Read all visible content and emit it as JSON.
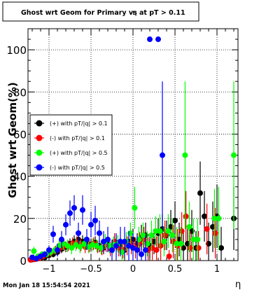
{
  "chart_data": {
    "type": "scatter",
    "title": "Ghost wrt Geom for Primary vs η at pT > 0.11",
    "title_part1": "Ghost wrt Geom for Primary vs",
    "title_eta": "η",
    "title_part2": "at pT > 0.11",
    "xlabel": "η",
    "ylabel": "Ghost wrt Geom(%)",
    "xlim": [
      -1.25,
      1.25
    ],
    "ylim": [
      0,
      110
    ],
    "x_ticks": [
      -1,
      -0.5,
      0,
      0.5,
      1
    ],
    "x_tick_labels": [
      "−1",
      "−0.5",
      "0",
      "0.5",
      "1"
    ],
    "y_ticks": [
      0,
      20,
      40,
      60,
      80,
      100
    ],
    "y_tick_labels": [
      "0",
      "20",
      "40",
      "60",
      "80",
      "100"
    ],
    "grid": true,
    "legend_position": "middle-left",
    "timestamp": "Mon Jan 18 15:54:54 2021",
    "series": [
      {
        "name": "(+) with pT/|q| > 0.1",
        "color": "#000000",
        "points": [
          [
            -1.2,
            0.5,
            0.5
          ],
          [
            -1.15,
            0.8,
            0.8
          ],
          [
            -1.1,
            1.2,
            1.0
          ],
          [
            -1.05,
            1.5,
            1.2
          ],
          [
            -1.0,
            2.5,
            1.5
          ],
          [
            -0.95,
            3.0,
            1.5
          ],
          [
            -0.9,
            4.0,
            2.0
          ],
          [
            -0.85,
            5.5,
            2.0
          ],
          [
            -0.8,
            6.5,
            2.5
          ],
          [
            -0.75,
            8.0,
            2.5
          ],
          [
            -0.7,
            9.0,
            3.0
          ],
          [
            -0.65,
            10.0,
            3.0
          ],
          [
            -0.6,
            9.0,
            3.0
          ],
          [
            -0.55,
            8.0,
            3.0
          ],
          [
            -0.5,
            7.5,
            3.0
          ],
          [
            -0.45,
            8.5,
            3.0
          ],
          [
            -0.4,
            7.0,
            3.0
          ],
          [
            -0.35,
            6.0,
            3.0
          ],
          [
            -0.3,
            8.0,
            3.5
          ],
          [
            -0.25,
            6.0,
            3.5
          ],
          [
            -0.2,
            8.5,
            4.0
          ],
          [
            -0.15,
            7.0,
            4.0
          ],
          [
            -0.1,
            5.0,
            4.0
          ],
          [
            -0.05,
            9.0,
            4.5
          ],
          [
            0.0,
            10.0,
            5.0
          ],
          [
            0.05,
            8.0,
            5.0
          ],
          [
            0.1,
            11.0,
            6.0
          ],
          [
            0.15,
            12.0,
            6.0
          ],
          [
            0.2,
            7.0,
            6.0
          ],
          [
            0.25,
            9.0,
            6.0
          ],
          [
            0.3,
            13.0,
            7.0
          ],
          [
            0.35,
            15.0,
            7.0
          ],
          [
            0.4,
            12.0,
            7.0
          ],
          [
            0.45,
            16.0,
            8.0
          ],
          [
            0.5,
            19.0,
            9.0
          ],
          [
            0.55,
            10.0,
            8.0
          ],
          [
            0.6,
            6.0,
            8.0
          ],
          [
            0.65,
            8.0,
            8.0
          ],
          [
            0.7,
            14.0,
            10.0
          ],
          [
            0.75,
            6.0,
            8.0
          ],
          [
            0.8,
            32.0,
            15.0
          ],
          [
            0.85,
            21.0,
            12.0
          ],
          [
            0.9,
            8.0,
            10.0
          ],
          [
            0.95,
            16.0,
            12.0
          ],
          [
            1.0,
            21.0,
            15.0
          ],
          [
            1.05,
            6.0,
            10.0
          ],
          [
            1.2,
            20.0,
            15.0
          ]
        ]
      },
      {
        "name": "(-) with pT/|q| > 0.1",
        "color": "#ff0000",
        "points": [
          [
            -1.22,
            0.3,
            0.3
          ],
          [
            -1.17,
            0.6,
            0.5
          ],
          [
            -1.12,
            1.0,
            0.8
          ],
          [
            -1.07,
            2.0,
            1.0
          ],
          [
            -1.02,
            3.0,
            1.5
          ],
          [
            -0.97,
            4.0,
            2.0
          ],
          [
            -0.92,
            5.0,
            2.0
          ],
          [
            -0.87,
            6.0,
            2.5
          ],
          [
            -0.82,
            7.0,
            2.5
          ],
          [
            -0.77,
            7.0,
            2.5
          ],
          [
            -0.72,
            8.0,
            3.0
          ],
          [
            -0.67,
            8.5,
            3.0
          ],
          [
            -0.62,
            7.5,
            3.0
          ],
          [
            -0.57,
            6.5,
            3.0
          ],
          [
            -0.52,
            7.0,
            3.0
          ],
          [
            -0.47,
            8.0,
            3.0
          ],
          [
            -0.42,
            6.5,
            3.0
          ],
          [
            -0.37,
            5.5,
            3.0
          ],
          [
            -0.32,
            7.5,
            3.5
          ],
          [
            -0.27,
            5.5,
            3.5
          ],
          [
            -0.22,
            9.0,
            4.0
          ],
          [
            -0.17,
            6.0,
            4.0
          ],
          [
            -0.12,
            5.0,
            4.0
          ],
          [
            -0.07,
            7.0,
            4.5
          ],
          [
            -0.02,
            8.0,
            5.0
          ],
          [
            0.03,
            6.0,
            5.0
          ],
          [
            0.08,
            8.0,
            5.5
          ],
          [
            0.13,
            10.0,
            6.0
          ],
          [
            0.18,
            5.0,
            6.0
          ],
          [
            0.23,
            6.0,
            6.0
          ],
          [
            0.28,
            5.0,
            6.5
          ],
          [
            0.33,
            7.0,
            7.0
          ],
          [
            0.38,
            12.0,
            7.0
          ],
          [
            0.43,
            2.0,
            3.0
          ],
          [
            0.48,
            9.0,
            8.0
          ],
          [
            0.53,
            7.0,
            8.0
          ],
          [
            0.58,
            14.0,
            9.0
          ],
          [
            0.63,
            21.0,
            12.0
          ],
          [
            0.68,
            6.0,
            8.0
          ],
          [
            0.78,
            6.0,
            8.0
          ],
          [
            0.88,
            15.0,
            12.0
          ],
          [
            0.98,
            13.0,
            12.0
          ]
        ]
      },
      {
        "name": "(+) with pT/|q| > 0.5",
        "color": "#00ff00",
        "points": [
          [
            -1.18,
            4.5,
            2.0
          ],
          [
            -1.13,
            2.0,
            1.5
          ],
          [
            -1.08,
            3.0,
            1.5
          ],
          [
            -1.03,
            3.0,
            1.5
          ],
          [
            -0.98,
            4.0,
            2.0
          ],
          [
            -0.93,
            5.0,
            2.0
          ],
          [
            -0.88,
            7.0,
            2.5
          ],
          [
            -0.83,
            8.0,
            3.0
          ],
          [
            -0.78,
            7.0,
            3.0
          ],
          [
            -0.73,
            6.0,
            3.0
          ],
          [
            -0.68,
            7.5,
            3.0
          ],
          [
            -0.63,
            6.5,
            3.0
          ],
          [
            -0.58,
            8.0,
            3.0
          ],
          [
            -0.53,
            6.5,
            3.0
          ],
          [
            -0.48,
            7.5,
            3.0
          ],
          [
            -0.43,
            7.0,
            3.0
          ],
          [
            -0.38,
            6.0,
            3.0
          ],
          [
            -0.33,
            9.0,
            3.5
          ],
          [
            -0.28,
            7.0,
            3.5
          ],
          [
            -0.23,
            7.5,
            4.0
          ],
          [
            -0.18,
            8.0,
            4.0
          ],
          [
            -0.13,
            4.0,
            4.0
          ],
          [
            -0.08,
            9.0,
            4.5
          ],
          [
            -0.03,
            13.0,
            5.0
          ],
          [
            0.02,
            25.0,
            10.0
          ],
          [
            0.07,
            10.0,
            6.0
          ],
          [
            0.12,
            12.0,
            6.0
          ],
          [
            0.17,
            8.0,
            6.0
          ],
          [
            0.22,
            12.0,
            7.0
          ],
          [
            0.27,
            14.0,
            7.0
          ],
          [
            0.32,
            14.0,
            8.0
          ],
          [
            0.37,
            9.0,
            7.0
          ],
          [
            0.42,
            14.0,
            8.0
          ],
          [
            0.47,
            12.0,
            8.0
          ],
          [
            0.52,
            8.0,
            8.0
          ],
          [
            0.57,
            8.0,
            8.0
          ],
          [
            0.62,
            50.0,
            35.0
          ],
          [
            0.67,
            16.0,
            12.0
          ],
          [
            0.72,
            10.0,
            10.0
          ],
          [
            0.77,
            10.0,
            10.0
          ],
          [
            0.97,
            20.0,
            14.0
          ],
          [
            1.02,
            20.0,
            15.0
          ],
          [
            1.2,
            50.0,
            35.0
          ]
        ]
      },
      {
        "name": "(-) with pT/|q| > 0.5",
        "color": "#0000ff",
        "points": [
          [
            -1.2,
            1.5,
            1.0
          ],
          [
            -1.15,
            1.0,
            1.0
          ],
          [
            -1.1,
            2.0,
            1.0
          ],
          [
            -1.05,
            3.0,
            1.5
          ],
          [
            -1.0,
            5.0,
            2.0
          ],
          [
            -0.95,
            12.5,
            4.0
          ],
          [
            -0.9,
            5.0,
            3.0
          ],
          [
            -0.85,
            10.0,
            4.0
          ],
          [
            -0.8,
            17.0,
            5.0
          ],
          [
            -0.75,
            22.5,
            6.0
          ],
          [
            -0.7,
            25.0,
            6.0
          ],
          [
            -0.65,
            13.0,
            5.0
          ],
          [
            -0.6,
            24.0,
            7.0
          ],
          [
            -0.55,
            10.0,
            5.0
          ],
          [
            -0.5,
            17.0,
            6.0
          ],
          [
            -0.45,
            19.0,
            7.0
          ],
          [
            -0.4,
            13.0,
            6.0
          ],
          [
            -0.35,
            9.0,
            5.0
          ],
          [
            -0.3,
            10.0,
            6.0
          ],
          [
            -0.25,
            5.0,
            5.0
          ],
          [
            -0.2,
            7.0,
            6.0
          ],
          [
            -0.15,
            9.0,
            7.0
          ],
          [
            -0.1,
            9.0,
            7.0
          ],
          [
            -0.05,
            7.0,
            7.0
          ],
          [
            0.0,
            6.0,
            7.0
          ],
          [
            0.05,
            5.0,
            7.0
          ],
          [
            0.1,
            3.0,
            5.0
          ],
          [
            0.15,
            5.0,
            7.0
          ],
          [
            0.2,
            105.0,
            0.0
          ],
          [
            0.3,
            105.0,
            0.0
          ],
          [
            0.35,
            50.0,
            35.0
          ]
        ]
      }
    ]
  }
}
